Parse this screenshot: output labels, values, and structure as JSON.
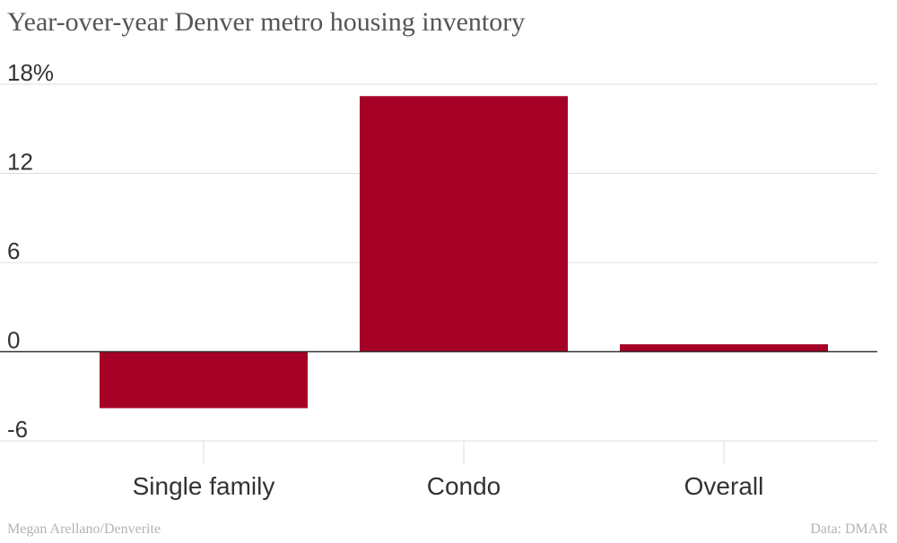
{
  "chart_data": {
    "type": "bar",
    "title": "Year-over-year Denver metro housing inventory",
    "categories": [
      "Single family",
      "Condo",
      "Overall"
    ],
    "values": [
      -3.8,
      17.2,
      0.5
    ],
    "ylim": [
      -6,
      18
    ],
    "yticks": [
      -6,
      0,
      6,
      12,
      18
    ],
    "ytick_labels": [
      "-6",
      "0",
      "6",
      "12",
      "18%"
    ],
    "xlabel": "",
    "ylabel": "",
    "grid": true,
    "colors": {
      "bar": "#a50026",
      "grid": "#dddddd",
      "axis": "#333333",
      "tick_text": "#333333"
    }
  },
  "footer": {
    "credit": "Megan Arellano/Denverite",
    "source": "Data: DMAR"
  }
}
